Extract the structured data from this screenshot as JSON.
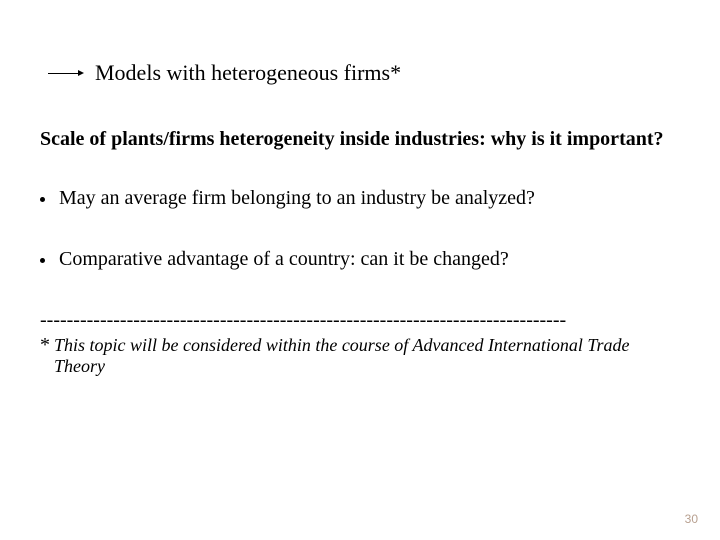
{
  "title": "Models with heterogeneous firms*",
  "question": "Scale of plants/firms heterogeneity inside industries: why is it important?",
  "bullets": [
    "May an average firm belonging to an industry be analyzed?",
    "Comparative advantage of a country: can it be changed?"
  ],
  "divider": "-------------------------------------------------------------------------------",
  "footnote_star": "*",
  "footnote": "This topic will be considered within the course of Advanced International Trade Theory",
  "page_number": "30"
}
